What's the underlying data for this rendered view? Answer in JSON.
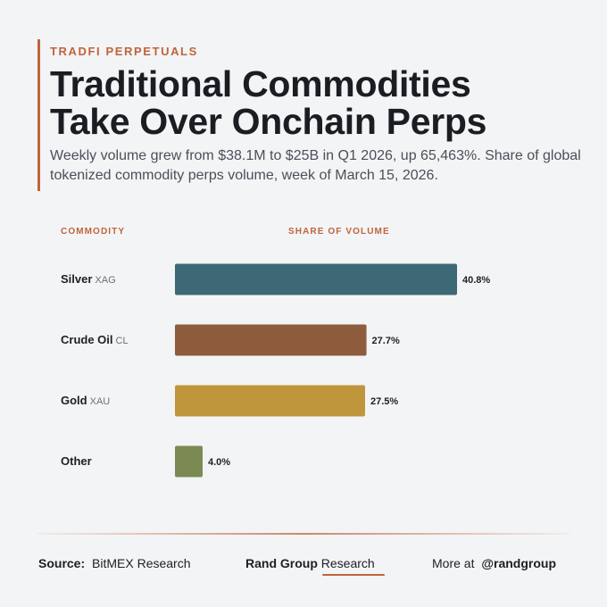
{
  "header": {
    "eyebrow": "TRADFI PERPETUALS",
    "title_line1": "Traditional Commodities",
    "title_line2": "Take Over Onchain Perps",
    "subtitle": "Weekly volume grew from $38.1M to $25B in Q1 2026, up 65,463%. Share of global tokenized commodity perps volume, week of March 15, 2026."
  },
  "columns": {
    "commodity": "COMMODITY",
    "share": "SHARE OF VOLUME"
  },
  "chart_data": {
    "type": "bar",
    "orientation": "horizontal",
    "categories": [
      "Silver",
      "Crude Oil",
      "Gold",
      "Other"
    ],
    "codes": [
      "XAG",
      "CL",
      "XAU",
      ""
    ],
    "values": [
      40.8,
      27.7,
      27.5,
      4.0
    ],
    "value_labels": [
      "40.8%",
      "27.7%",
      "27.5%",
      "4.0%"
    ],
    "colors": [
      "#3d6876",
      "#8d5c3c",
      "#bf963c",
      "#7a8a52"
    ],
    "unit": "%",
    "xlim": [
      0,
      40.8
    ],
    "grid": false,
    "title": "Traditional Commodities Take Over Onchain Perps",
    "xlabel": "SHARE OF VOLUME",
    "ylabel": "COMMODITY"
  },
  "footer": {
    "source_label": "Source:",
    "source_value": "BitMEX Research",
    "brand_bold": "Rand Group",
    "brand_rest": "Research",
    "more_label": "More at",
    "more_handle": "@randgroup"
  }
}
